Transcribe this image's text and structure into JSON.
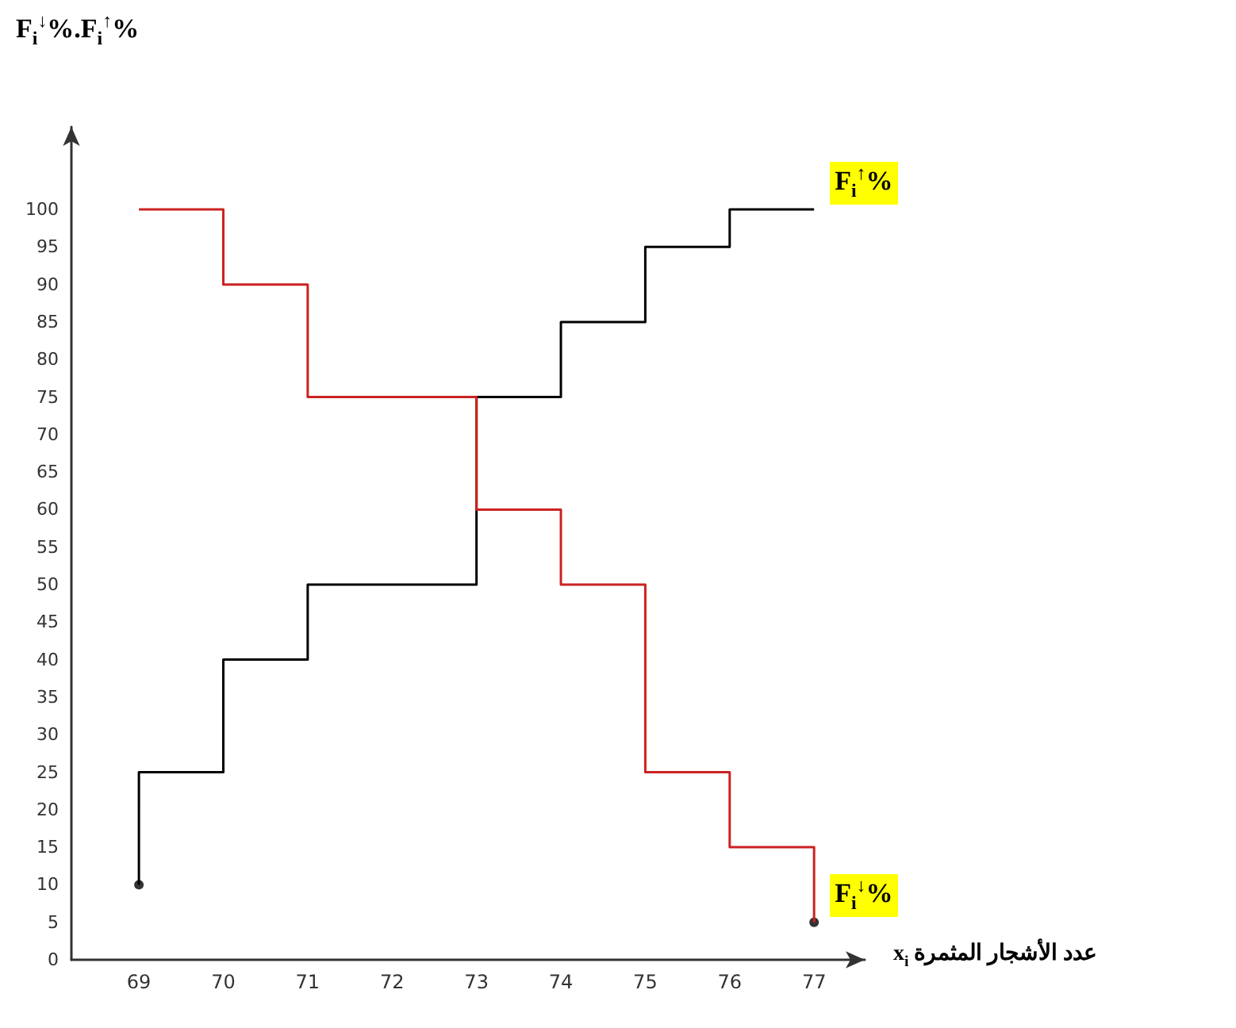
{
  "chart_data": {
    "type": "step",
    "ylabel": "F$_{i}$$^{↓}$%.F$_{i}$$^{↑}$%",
    "xlabel": "x$_{i}$ عدد الأشجار المثمرة",
    "xlim": [
      68.2,
      77.6
    ],
    "xticks": [
      69,
      70,
      71,
      72,
      73,
      74,
      75,
      76,
      77
    ],
    "ylim": [
      0,
      111
    ],
    "yticks": [
      0,
      5,
      10,
      15,
      20,
      25,
      30,
      35,
      40,
      45,
      50,
      55,
      60,
      65,
      70,
      75,
      80,
      85,
      90,
      95,
      100
    ],
    "series": [
      {
        "name": "F$_{i}$$^{↑}$%",
        "color": "#000000",
        "x": [
          69,
          69,
          70,
          71,
          72,
          73,
          74,
          75,
          76,
          77
        ],
        "values": [
          10,
          25,
          40,
          50,
          50,
          75,
          85,
          95,
          100,
          100
        ]
      },
      {
        "name": "F$_{i}$$^{↓}$%",
        "color": "#cc2222",
        "x": [
          69,
          70,
          71,
          72,
          73,
          74,
          75,
          76,
          77
        ],
        "values": [
          100,
          90,
          75,
          75,
          60,
          50,
          25,
          15,
          5
        ]
      },
      {
        "type": "scatter",
        "color": "#000000",
        "x": [
          69
        ],
        "values": [
          10
        ]
      },
      {
        "type": "scatter",
        "color": "#000000",
        "x": [
          77
        ],
        "values": [
          5
        ]
      }
    ]
  }
}
